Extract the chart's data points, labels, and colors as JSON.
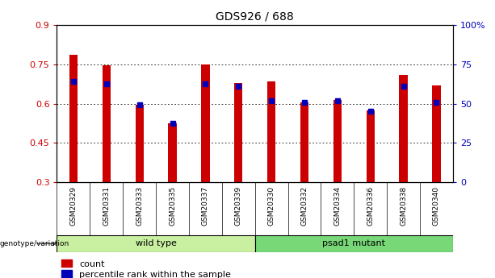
{
  "title": "GDS926 / 688",
  "samples": [
    "GSM20329",
    "GSM20331",
    "GSM20333",
    "GSM20335",
    "GSM20337",
    "GSM20339",
    "GSM20330",
    "GSM20332",
    "GSM20334",
    "GSM20336",
    "GSM20338",
    "GSM20340"
  ],
  "red_values": [
    0.785,
    0.745,
    0.595,
    0.525,
    0.75,
    0.68,
    0.685,
    0.605,
    0.615,
    0.575,
    0.71,
    0.67
  ],
  "blue_values": [
    0.685,
    0.675,
    0.595,
    0.525,
    0.675,
    0.665,
    0.61,
    0.605,
    0.61,
    0.572,
    0.665,
    0.605
  ],
  "ymin": 0.3,
  "ymax": 0.9,
  "y_ticks": [
    0.3,
    0.45,
    0.6,
    0.75,
    0.9
  ],
  "y_tick_labels": [
    "0.3",
    "0.45",
    "0.6",
    "0.75",
    "0.9"
  ],
  "y2_ticks": [
    0,
    25,
    50,
    75,
    100
  ],
  "y2_tick_labels": [
    "0",
    "25",
    "50",
    "75",
    "100%"
  ],
  "groups": [
    {
      "label": "wild type",
      "start": 0,
      "end": 6,
      "color": "#c8f0a0"
    },
    {
      "label": "psad1 mutant",
      "start": 6,
      "end": 12,
      "color": "#78d878"
    }
  ],
  "genotype_label": "genotype/variation",
  "legend_items": [
    {
      "color": "#cc0000",
      "label": "count"
    },
    {
      "color": "#0000bb",
      "label": "percentile rank within the sample"
    }
  ],
  "bar_color": "#cc0000",
  "dot_color": "#0000bb",
  "bar_width": 0.25,
  "background_color": "#ffffff",
  "plot_bg": "#ffffff",
  "title_fontsize": 10,
  "tick_label_color_left": "#cc0000",
  "tick_label_color_right": "#0000bb",
  "grid_color": "#000000",
  "tick_area_bg": "#c8c8c8"
}
